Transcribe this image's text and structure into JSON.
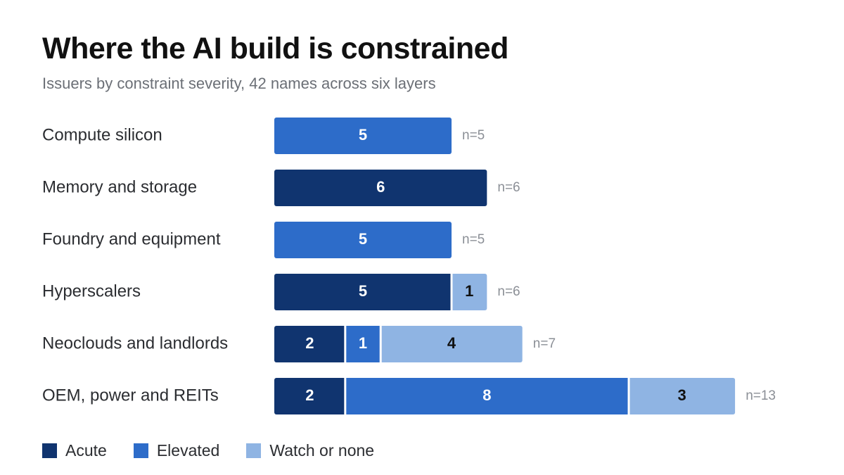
{
  "title": "Where the AI build is constrained",
  "subtitle": "Issuers by constraint severity, 42 names across six layers",
  "colors": {
    "acute": "#10346f",
    "elevated": "#2d6cc9",
    "watch": "#8fb4e3",
    "text_light": "#ffffff",
    "text_dark": "#111111"
  },
  "legend": [
    {
      "label": "Acute",
      "color": "#10346f"
    },
    {
      "label": "Elevated",
      "color": "#2d6cc9"
    },
    {
      "label": "Watch or none",
      "color": "#8fb4e3"
    }
  ],
  "chart_data": {
    "type": "bar",
    "orientation": "horizontal",
    "stacked": true,
    "categories": [
      "Compute silicon",
      "Memory and storage",
      "Foundry and equipment",
      "Hyperscalers",
      "Neoclouds and landlords",
      "OEM, power and REITs"
    ],
    "series": [
      {
        "name": "Acute",
        "values": [
          0,
          6,
          0,
          5,
          2,
          2
        ]
      },
      {
        "name": "Elevated",
        "values": [
          5,
          0,
          5,
          0,
          1,
          8
        ]
      },
      {
        "name": "Watch or none",
        "values": [
          0,
          0,
          0,
          1,
          4,
          3
        ]
      }
    ],
    "totals": [
      "n=5",
      "n=6",
      "n=5",
      "n=6",
      "n=7",
      "n=13"
    ],
    "title": "Where the AI build is constrained",
    "subtitle": "Issuers by constraint severity, 42 names across six layers",
    "xlim": [
      0,
      13
    ],
    "grid": false,
    "legend_position": "bottom-left"
  }
}
